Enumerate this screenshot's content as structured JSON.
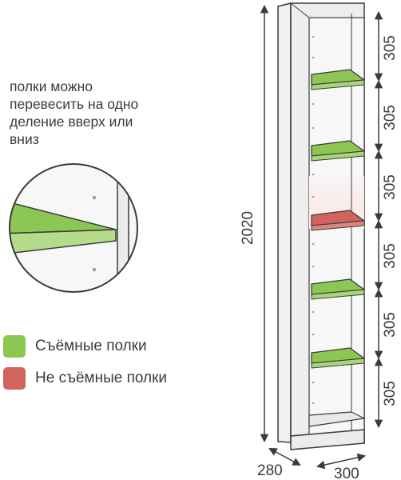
{
  "note": {
    "lines": [
      "полки можно",
      "перевесить на одно",
      "деление вверх или",
      "вниз"
    ]
  },
  "legend": [
    {
      "label": "Съёмные полки",
      "color": "#8cc653"
    },
    {
      "label": "Не съёмные полки",
      "color": "#d2645e"
    }
  ],
  "dimensions": {
    "height": "2020",
    "depth": "280",
    "width": "300",
    "shelf_spacing": [
      "305",
      "305",
      "305",
      "305",
      "305",
      "305"
    ]
  },
  "colors": {
    "cabinet": "#f1f1f1",
    "interior": "#f6f6f6",
    "removable_shelf": "#8cc653",
    "fixed_shelf": "#d2645e",
    "dimension_line": "#3b3b3b"
  }
}
